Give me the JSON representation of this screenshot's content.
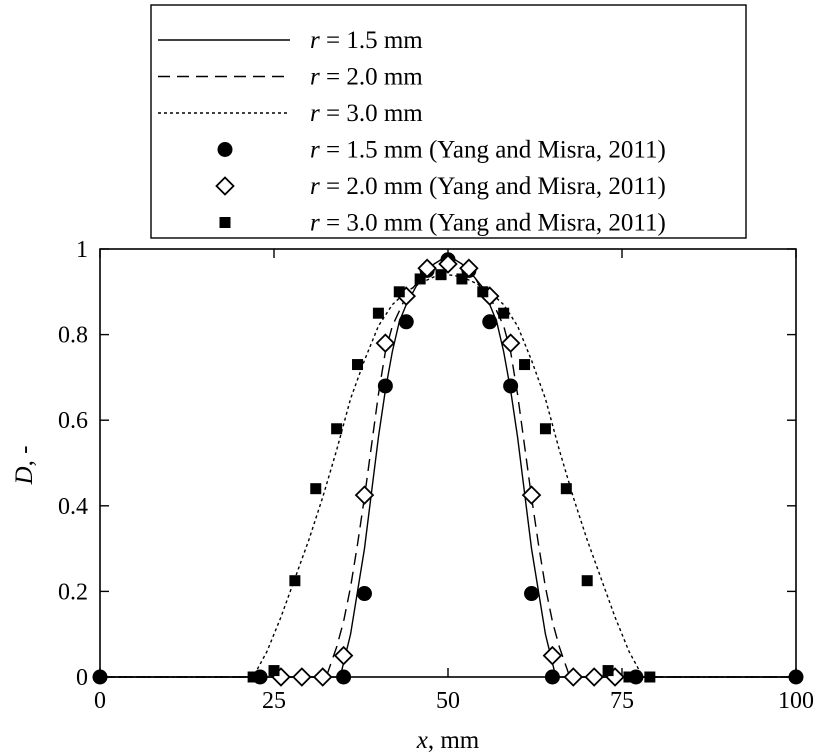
{
  "chart_data": {
    "type": "line",
    "xlabel": {
      "var": "x",
      "rest": ", mm"
    },
    "ylabel": {
      "var": "D",
      "rest": ", -"
    },
    "xlim": [
      0,
      100
    ],
    "ylim": [
      0,
      1
    ],
    "xticks": [
      0,
      25,
      50,
      75,
      100
    ],
    "yticks": [
      0,
      0.2,
      0.4,
      0.6,
      0.8,
      1
    ],
    "xtick_labels": [
      "0",
      "25",
      "50",
      "75",
      "100"
    ],
    "ytick_labels": [
      "0",
      "0.2",
      "0.4",
      "0.6",
      "0.8",
      "1"
    ],
    "grid": false,
    "legend_position": "top-center, above plot",
    "series": [
      {
        "name": "r = 1.5 mm",
        "name_var": "r",
        "name_rest": " = 1.5 mm",
        "kind": "line",
        "dash": "solid",
        "x": [
          0,
          34.5,
          36,
          37,
          38,
          39,
          40,
          41,
          42,
          43,
          44,
          45,
          46,
          47,
          48,
          49,
          50,
          51,
          52,
          53,
          54,
          55,
          56,
          57,
          58,
          59,
          60,
          61,
          62,
          63,
          64,
          65.5,
          100
        ],
        "y": [
          0,
          0,
          0.1,
          0.2,
          0.3,
          0.43,
          0.56,
          0.67,
          0.76,
          0.83,
          0.87,
          0.9,
          0.93,
          0.95,
          0.965,
          0.975,
          0.98,
          0.975,
          0.965,
          0.95,
          0.93,
          0.9,
          0.87,
          0.83,
          0.76,
          0.67,
          0.56,
          0.43,
          0.3,
          0.2,
          0.1,
          0,
          0
        ]
      },
      {
        "name": "r = 2.0 mm",
        "name_var": "r",
        "name_rest": " = 2.0 mm",
        "kind": "line",
        "dash": "dashed",
        "x": [
          0,
          32.5,
          34,
          35,
          36,
          37,
          38,
          39,
          40,
          41,
          42,
          44,
          46,
          48,
          50,
          52,
          54,
          56,
          58,
          59,
          60,
          61,
          62,
          63,
          64,
          65,
          66,
          67.5,
          100
        ],
        "y": [
          0,
          0,
          0.07,
          0.13,
          0.21,
          0.31,
          0.42,
          0.54,
          0.66,
          0.76,
          0.82,
          0.89,
          0.93,
          0.955,
          0.965,
          0.955,
          0.93,
          0.89,
          0.82,
          0.76,
          0.66,
          0.54,
          0.42,
          0.31,
          0.21,
          0.13,
          0.07,
          0,
          0
        ]
      },
      {
        "name": "r = 3.0 mm",
        "name_var": "r",
        "name_rest": " = 3.0 mm",
        "kind": "line",
        "dash": "dotted",
        "x": [
          0,
          22,
          24,
          26,
          28,
          30,
          32,
          34,
          36,
          38,
          40,
          42,
          44,
          46,
          48,
          50,
          52,
          54,
          56,
          58,
          60,
          62,
          64,
          66,
          68,
          70,
          72,
          74,
          76,
          78,
          100
        ],
        "y": [
          0,
          0,
          0.06,
          0.14,
          0.23,
          0.32,
          0.42,
          0.53,
          0.65,
          0.74,
          0.82,
          0.87,
          0.9,
          0.92,
          0.935,
          0.94,
          0.935,
          0.92,
          0.9,
          0.87,
          0.82,
          0.74,
          0.65,
          0.53,
          0.42,
          0.32,
          0.23,
          0.14,
          0.06,
          0,
          0
        ]
      },
      {
        "name": "r = 1.5 mm (Yang and Misra, 2011)",
        "name_var": "r",
        "name_rest": " = 1.5 mm (Yang and Misra, 2011)",
        "kind": "marker",
        "marker": "circle",
        "x": [
          0,
          23,
          35,
          38,
          41,
          44,
          47,
          50,
          53,
          56,
          59,
          62,
          65,
          77,
          100
        ],
        "y": [
          0,
          0,
          0,
          0.195,
          0.68,
          0.83,
          0.95,
          0.975,
          0.95,
          0.83,
          0.68,
          0.195,
          0,
          0,
          0
        ]
      },
      {
        "name": "r = 2.0 mm (Yang and Misra, 2011)",
        "name_var": "r",
        "name_rest": " = 2.0 mm (Yang and Misra, 2011)",
        "kind": "marker",
        "marker": "diamond",
        "x": [
          26,
          29,
          32,
          35,
          38,
          41,
          44,
          47,
          50,
          53,
          56,
          59,
          62,
          65,
          68,
          71,
          74
        ],
        "y": [
          0,
          0,
          0,
          0.05,
          0.425,
          0.78,
          0.89,
          0.955,
          0.965,
          0.955,
          0.89,
          0.78,
          0.425,
          0.05,
          0,
          0,
          0
        ]
      },
      {
        "name": "r = 3.0 mm (Yang and Misra, 2011)",
        "name_var": "r",
        "name_rest": " = 3.0 mm (Yang and Misra, 2011)",
        "kind": "marker",
        "marker": "square",
        "x": [
          22,
          25,
          28,
          31,
          34,
          37,
          40,
          43,
          46,
          49,
          52,
          55,
          58,
          61,
          64,
          67,
          70,
          73,
          76,
          79
        ],
        "y": [
          0,
          0.015,
          0.225,
          0.44,
          0.58,
          0.73,
          0.85,
          0.9,
          0.93,
          0.94,
          0.93,
          0.9,
          0.85,
          0.73,
          0.58,
          0.44,
          0.225,
          0.015,
          0,
          0
        ]
      }
    ]
  }
}
